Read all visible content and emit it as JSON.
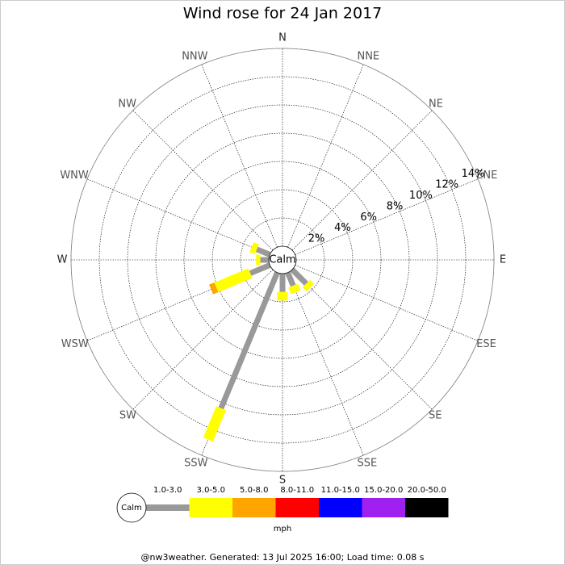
{
  "chart_data": {
    "type": "windrose",
    "title": "Wind rose for 24 Jan 2017",
    "categories": [
      "N",
      "NNE",
      "NE",
      "ENE",
      "E",
      "ESE",
      "SE",
      "SSE",
      "S",
      "SSW",
      "SW",
      "WSW",
      "W",
      "WNW",
      "NW",
      "NNW"
    ],
    "center_label": "Calm",
    "rlim": [
      0,
      14
    ],
    "rticks": [
      {
        "value": 2,
        "label": "2%"
      },
      {
        "value": 4,
        "label": "4%"
      },
      {
        "value": 6,
        "label": "6%"
      },
      {
        "value": 8,
        "label": "8%"
      },
      {
        "value": 10,
        "label": "10%"
      },
      {
        "value": 12,
        "label": "12%"
      },
      {
        "value": 14,
        "label": "14%"
      }
    ],
    "series": [
      {
        "name": "1.0-3.0",
        "color": "#999999",
        "values": [
          0,
          0,
          0,
          0,
          0,
          0,
          1.4,
          1.0,
          1.3,
          10.4,
          0,
          1.5,
          0.6,
          1.0,
          0,
          0
        ]
      },
      {
        "name": "3.0-5.0",
        "color": "#ffff00",
        "values": [
          0,
          0,
          0,
          0,
          0,
          0,
          0.4,
          0.5,
          0.6,
          2.4,
          0,
          2.6,
          0.3,
          0.4,
          0,
          0
        ]
      },
      {
        "name": "5.0-8.0",
        "color": "#ffa500",
        "values": [
          0,
          0,
          0,
          0,
          0,
          0,
          0,
          0,
          0,
          0,
          0,
          0.4,
          0,
          0,
          0,
          0
        ]
      },
      {
        "name": "8.0-11.0",
        "color": "#ff0000",
        "values": [
          0,
          0,
          0,
          0,
          0,
          0,
          0,
          0,
          0,
          0,
          0,
          0,
          0,
          0,
          0,
          0
        ]
      },
      {
        "name": "11.0-15.0",
        "color": "#0000ff",
        "values": [
          0,
          0,
          0,
          0,
          0,
          0,
          0,
          0,
          0,
          0,
          0,
          0,
          0,
          0,
          0,
          0
        ]
      },
      {
        "name": "15.0-20.0",
        "color": "#a020f0",
        "values": [
          0,
          0,
          0,
          0,
          0,
          0,
          0,
          0,
          0,
          0,
          0,
          0,
          0,
          0,
          0,
          0
        ]
      },
      {
        "name": "20.0-50.0",
        "color": "#000000",
        "values": [
          0,
          0,
          0,
          0,
          0,
          0,
          0,
          0,
          0,
          0,
          0,
          0,
          0,
          0,
          0,
          0
        ]
      }
    ],
    "legend_unit": "mph",
    "footer": "@nw3weather. Generated: 13 Jul 2025 16:00; Load time: 0.08 s"
  }
}
